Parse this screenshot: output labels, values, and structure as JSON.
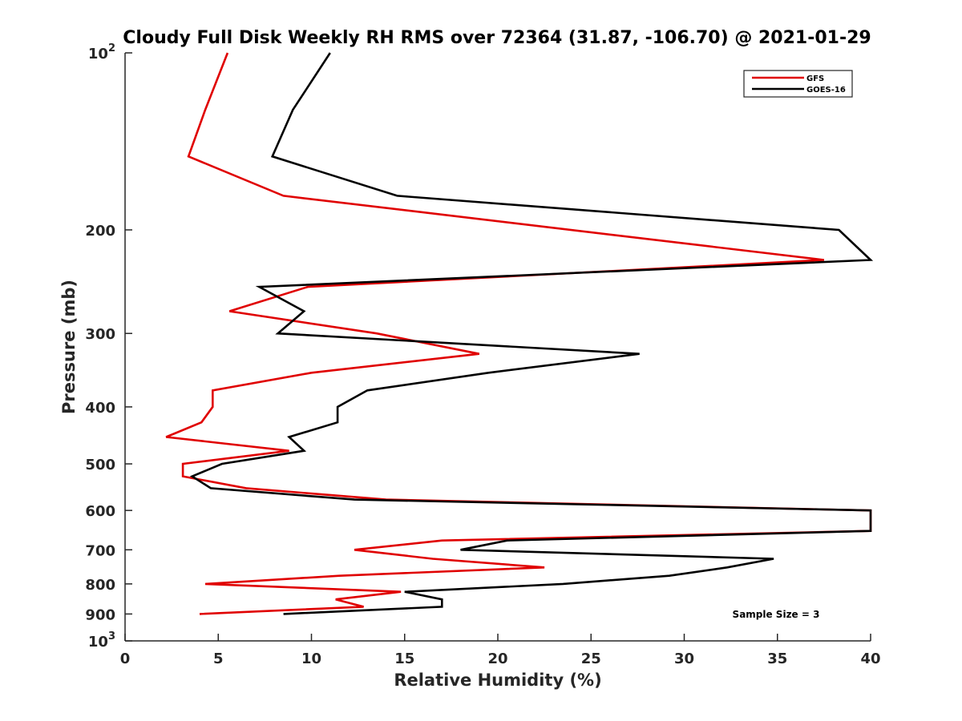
{
  "chart_data": {
    "type": "line",
    "title": "Cloudy Full Disk Weekly RH RMS over 72364 (31.87, -106.70) @ 2021-01-29",
    "xlabel": "Relative Humidity (%)",
    "ylabel": "Pressure (mb)",
    "xlim": [
      0,
      40
    ],
    "ylim": [
      100,
      1000
    ],
    "yscale": "log",
    "y_reversed": true,
    "grid": false,
    "legend_position": "top-right",
    "x_ticks": [
      "0",
      "5",
      "10",
      "15",
      "20",
      "25",
      "30",
      "35",
      "40"
    ],
    "x_tick_values": [
      0,
      5,
      10,
      15,
      20,
      25,
      30,
      35,
      40
    ],
    "y_ticks": [
      {
        "value": 100,
        "base": "10",
        "exp": "2"
      },
      {
        "value": 200,
        "label": "200"
      },
      {
        "value": 300,
        "label": "300"
      },
      {
        "value": 400,
        "label": "400"
      },
      {
        "value": 500,
        "label": "500"
      },
      {
        "value": 600,
        "label": "600"
      },
      {
        "value": 700,
        "label": "700"
      },
      {
        "value": 800,
        "label": "800"
      },
      {
        "value": 900,
        "label": "900"
      },
      {
        "value": 1000,
        "base": "10",
        "exp": "3"
      }
    ],
    "annotation": "Sample Size = 3",
    "series": [
      {
        "name": "GFS",
        "color": "#e00000",
        "points": [
          {
            "x": 5.5,
            "y": 100
          },
          {
            "x": 4.3,
            "y": 125
          },
          {
            "x": 3.4,
            "y": 150
          },
          {
            "x": 8.5,
            "y": 175
          },
          {
            "x": 37.5,
            "y": 225
          },
          {
            "x": 9.8,
            "y": 250
          },
          {
            "x": 5.6,
            "y": 275
          },
          {
            "x": 13.5,
            "y": 300
          },
          {
            "x": 19.0,
            "y": 325
          },
          {
            "x": 10.0,
            "y": 350
          },
          {
            "x": 4.7,
            "y": 375
          },
          {
            "x": 4.7,
            "y": 400
          },
          {
            "x": 4.1,
            "y": 425
          },
          {
            "x": 2.2,
            "y": 450
          },
          {
            "x": 8.8,
            "y": 475
          },
          {
            "x": 3.1,
            "y": 500
          },
          {
            "x": 3.1,
            "y": 525
          },
          {
            "x": 6.5,
            "y": 550
          },
          {
            "x": 14.0,
            "y": 575
          },
          {
            "x": 40.0,
            "y": 600
          },
          {
            "x": 40.0,
            "y": 650
          },
          {
            "x": 17.0,
            "y": 675
          },
          {
            "x": 12.3,
            "y": 700
          },
          {
            "x": 16.5,
            "y": 725
          },
          {
            "x": 22.5,
            "y": 750
          },
          {
            "x": 11.5,
            "y": 775
          },
          {
            "x": 4.3,
            "y": 800
          },
          {
            "x": 14.8,
            "y": 825
          },
          {
            "x": 11.3,
            "y": 850
          },
          {
            "x": 12.8,
            "y": 875
          },
          {
            "x": 4.0,
            "y": 900
          }
        ]
      },
      {
        "name": "GOES-16",
        "color": "#000000",
        "points": [
          {
            "x": 11.0,
            "y": 100
          },
          {
            "x": 9.0,
            "y": 125
          },
          {
            "x": 7.9,
            "y": 150
          },
          {
            "x": 14.6,
            "y": 175
          },
          {
            "x": 38.3,
            "y": 200
          },
          {
            "x": 40.0,
            "y": 225
          },
          {
            "x": 7.2,
            "y": 250
          },
          {
            "x": 9.6,
            "y": 275
          },
          {
            "x": 8.2,
            "y": 300
          },
          {
            "x": 27.6,
            "y": 325
          },
          {
            "x": 19.5,
            "y": 350
          },
          {
            "x": 13.0,
            "y": 375
          },
          {
            "x": 11.4,
            "y": 400
          },
          {
            "x": 11.4,
            "y": 425
          },
          {
            "x": 8.8,
            "y": 450
          },
          {
            "x": 9.6,
            "y": 475
          },
          {
            "x": 5.2,
            "y": 500
          },
          {
            "x": 3.6,
            "y": 525
          },
          {
            "x": 4.6,
            "y": 550
          },
          {
            "x": 12.3,
            "y": 575
          },
          {
            "x": 40.0,
            "y": 600
          },
          {
            "x": 40.0,
            "y": 650
          },
          {
            "x": 20.5,
            "y": 675
          },
          {
            "x": 18.0,
            "y": 700
          },
          {
            "x": 34.8,
            "y": 725
          },
          {
            "x": 32.3,
            "y": 750
          },
          {
            "x": 29.2,
            "y": 775
          },
          {
            "x": 23.5,
            "y": 800
          },
          {
            "x": 15.0,
            "y": 825
          },
          {
            "x": 17.0,
            "y": 850
          },
          {
            "x": 17.0,
            "y": 875
          },
          {
            "x": 8.5,
            "y": 900
          }
        ]
      }
    ]
  }
}
